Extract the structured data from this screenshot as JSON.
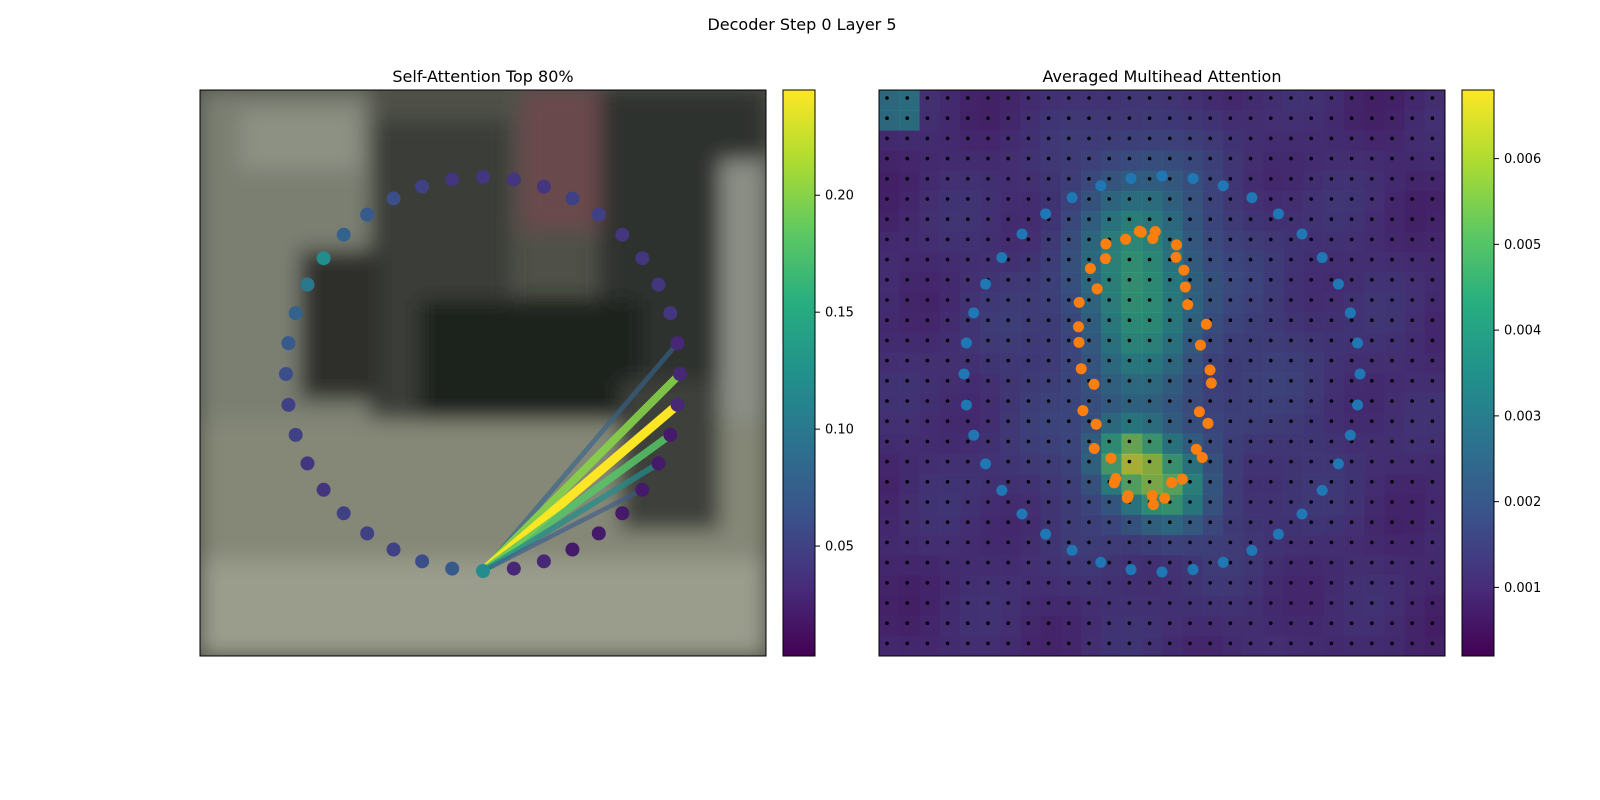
{
  "figure": {
    "title": "Decoder Step 0 Layer 5"
  },
  "chart_data": [
    {
      "type": "scatter",
      "title": "Self-Attention Top 80%",
      "colorbar": {
        "colormap": "viridis",
        "range": [
          0.003,
          0.245
        ],
        "ticks": [
          0.05,
          0.1,
          0.15,
          0.2
        ],
        "tick_labels": [
          "0.05",
          "0.10",
          "0.15",
          "0.20"
        ]
      },
      "points": {
        "description": "40 contour points arranged in a circle, colored by attention weight",
        "count": 40,
        "query_index": 0,
        "weights": [
          0.12,
          0.07,
          0.06,
          0.05,
          0.05,
          0.05,
          0.04,
          0.04,
          0.05,
          0.05,
          0.06,
          0.07,
          0.08,
          0.1,
          0.12,
          0.08,
          0.07,
          0.06,
          0.05,
          0.04,
          0.04,
          0.04,
          0.04,
          0.05,
          0.05,
          0.04,
          0.04,
          0.04,
          0.04,
          0.03,
          0.03,
          0.03,
          0.02,
          0.02,
          0.02,
          0.02,
          0.02,
          0.02,
          0.03,
          0.03
        ]
      },
      "attention_lines": [
        {
          "to_index": 29,
          "weight": 0.08
        },
        {
          "to_index": 30,
          "weight": 0.2
        },
        {
          "to_index": 31,
          "weight": 0.245
        },
        {
          "to_index": 32,
          "weight": 0.18
        },
        {
          "to_index": 33,
          "weight": 0.12
        },
        {
          "to_index": 34,
          "weight": 0.07
        }
      ]
    },
    {
      "type": "heatmap",
      "title": "Averaged Multihead Attention",
      "colorbar": {
        "colormap": "viridis",
        "range": [
          0.0002,
          0.0068
        ],
        "ticks": [
          0.001,
          0.002,
          0.003,
          0.004,
          0.005,
          0.006
        ],
        "tick_labels": [
          "0.001",
          "0.002",
          "0.003",
          "0.004",
          "0.005",
          "0.006"
        ]
      },
      "grid_size": 28,
      "series": [
        {
          "marker": "circle",
          "color": "#1f77b4",
          "count": 40
        },
        {
          "marker": "circle",
          "color": "#ff7f0e",
          "count": 40
        }
      ],
      "reference_grid_dots": {
        "rows": 28,
        "cols": 28,
        "color": "#000000"
      }
    }
  ]
}
